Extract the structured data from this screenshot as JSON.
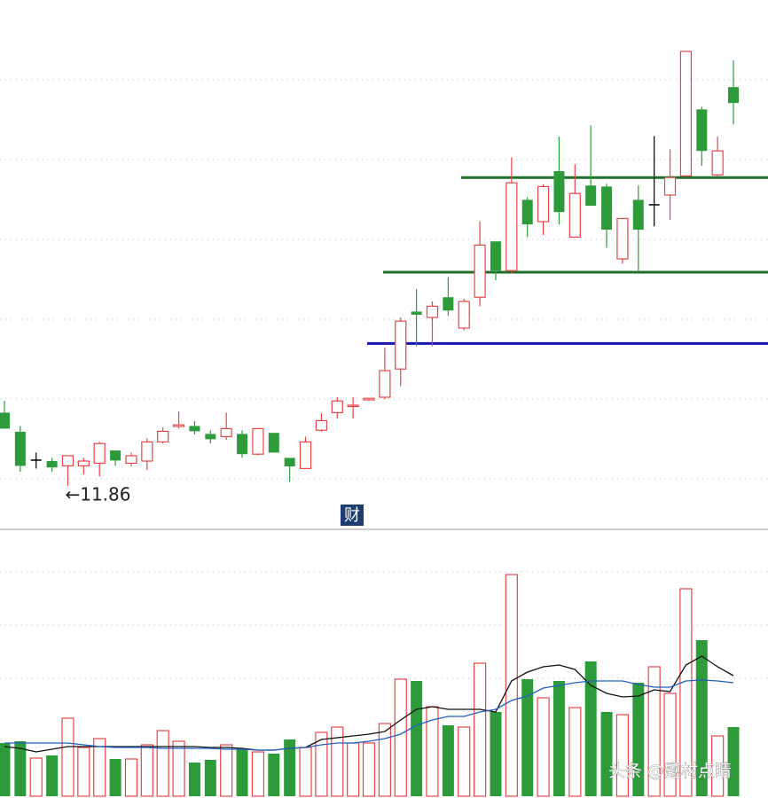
{
  "chart_data": [
    {
      "type": "candlestick",
      "open": [
        13.24,
        12.88,
        12.36,
        12.33,
        12.24,
        12.24,
        12.29,
        12.53,
        12.29,
        12.33,
        12.69,
        12.98,
        12.99,
        12.84,
        12.79,
        12.84,
        12.46,
        12.86,
        12.39,
        12.19,
        12.91,
        13.24,
        13.36,
        13.48,
        13.53,
        14.06,
        15.14,
        15.03,
        15.41,
        14.83,
        15.41,
        16.46,
        15.91,
        17.24,
        16.83,
        17.78,
        16.54,
        17.51,
        17.49,
        16.13,
        17.24,
        17.16,
        17.33,
        17.69,
        18.94,
        17.71,
        19.36
      ],
      "high": [
        13.46,
        12.99,
        12.49,
        12.39,
        12.44,
        12.39,
        12.69,
        12.53,
        12.49,
        12.76,
        12.96,
        13.26,
        13.08,
        12.91,
        13.24,
        12.91,
        12.94,
        12.86,
        12.39,
        12.79,
        13.23,
        13.53,
        13.53,
        13.51,
        14.46,
        15.03,
        15.56,
        15.33,
        15.79,
        15.38,
        16.84,
        16.46,
        18.04,
        17.29,
        17.53,
        18.43,
        17.91,
        18.64,
        17.54,
        16.89,
        17.51,
        18.44,
        18.19,
        20.03,
        18.99,
        18.43,
        19.86
      ],
      "low": [
        12.94,
        12.13,
        12.19,
        12.13,
        11.86,
        12.08,
        12.04,
        12.24,
        12.23,
        12.16,
        12.66,
        12.94,
        12.83,
        12.66,
        12.73,
        12.39,
        12.44,
        12.49,
        11.94,
        12.19,
        12.88,
        13.13,
        13.13,
        13.46,
        13.49,
        13.74,
        14.49,
        14.49,
        15.06,
        14.79,
        15.24,
        15.73,
        15.86,
        16.54,
        16.58,
        16.78,
        16.54,
        17.13,
        16.34,
        16.04,
        15.91,
        16.74,
        16.86,
        17.69,
        17.88,
        17.69,
        18.66
      ],
      "close": [
        12.94,
        12.24,
        12.36,
        12.21,
        12.43,
        12.33,
        12.66,
        12.34,
        12.43,
        12.69,
        12.89,
        13.01,
        12.89,
        12.74,
        12.94,
        12.46,
        12.94,
        12.49,
        12.23,
        12.69,
        13.09,
        13.46,
        13.38,
        13.51,
        14.03,
        14.96,
        15.08,
        15.24,
        15.16,
        15.33,
        16.39,
        15.91,
        17.56,
        16.78,
        17.49,
        17.01,
        17.36,
        17.13,
        16.68,
        16.89,
        16.68,
        17.16,
        17.66,
        20.03,
        18.16,
        18.16,
        19.06
      ],
      "up_color": "#e8454a",
      "down_color": "#2e9b3a",
      "flat_color": "#000000",
      "ylim": [
        11.08,
        20.33
      ],
      "levels": [
        {
          "value": 17.66,
          "color": "#1f6f2c"
        },
        {
          "value": 15.88,
          "color": "#1f6f2c"
        },
        {
          "value": 14.54,
          "color": "#1515b0"
        }
      ],
      "annotation": {
        "value": 11.86,
        "label": "←11.86"
      },
      "badge": "财"
    },
    {
      "type": "volume",
      "values": [
        6.0,
        6.2,
        4.3,
        4.6,
        8.8,
        5.5,
        6.5,
        4.2,
        4.2,
        5.8,
        7.4,
        6.2,
        3.8,
        4.1,
        5.8,
        5.3,
        5.0,
        4.8,
        6.4,
        5.5,
        7.2,
        7.8,
        6.0,
        6.0,
        8.2,
        13.2,
        13.0,
        10.1,
        8.0,
        7.8,
        15.0,
        9.5,
        25.0,
        13.2,
        11.1,
        13.0,
        10.0,
        15.2,
        9.5,
        9.2,
        12.8,
        14.6,
        11.6,
        23.4,
        17.6,
        6.8,
        7.8
      ],
      "series": [
        {
          "color": "#111111",
          "values": [
            5.6,
            5.4,
            5.0,
            5.3,
            5.6,
            5.6,
            5.6,
            5.6,
            5.6,
            5.6,
            5.6,
            5.6,
            5.6,
            5.5,
            5.5,
            5.4,
            5.2,
            5.2,
            5.4,
            5.5,
            6.4,
            6.6,
            6.8,
            7.0,
            7.3,
            8.6,
            9.8,
            10.1,
            9.8,
            9.8,
            9.8,
            9.5,
            13.0,
            14.0,
            14.6,
            14.8,
            14.3,
            12.5,
            11.6,
            11.2,
            11.3,
            12.0,
            11.8,
            14.8,
            15.8,
            14.6,
            13.6
          ]
        },
        {
          "color": "#2060c0",
          "values": [
            6.0,
            6.0,
            6.0,
            6.0,
            6.0,
            5.8,
            5.6,
            5.5,
            5.5,
            5.5,
            5.4,
            5.4,
            5.4,
            5.4,
            5.3,
            5.3,
            5.2,
            5.2,
            5.4,
            5.5,
            5.8,
            6.0,
            6.0,
            6.2,
            6.5,
            7.0,
            8.0,
            8.6,
            9.0,
            9.0,
            9.5,
            9.8,
            10.8,
            11.3,
            12.2,
            12.5,
            12.8,
            13.0,
            13.0,
            13.0,
            12.6,
            12.3,
            12.3,
            13.0,
            13.1,
            13.0,
            12.8
          ]
        }
      ],
      "ylim": [
        0,
        30
      ],
      "watermark": "头条 @题材点睛"
    }
  ]
}
